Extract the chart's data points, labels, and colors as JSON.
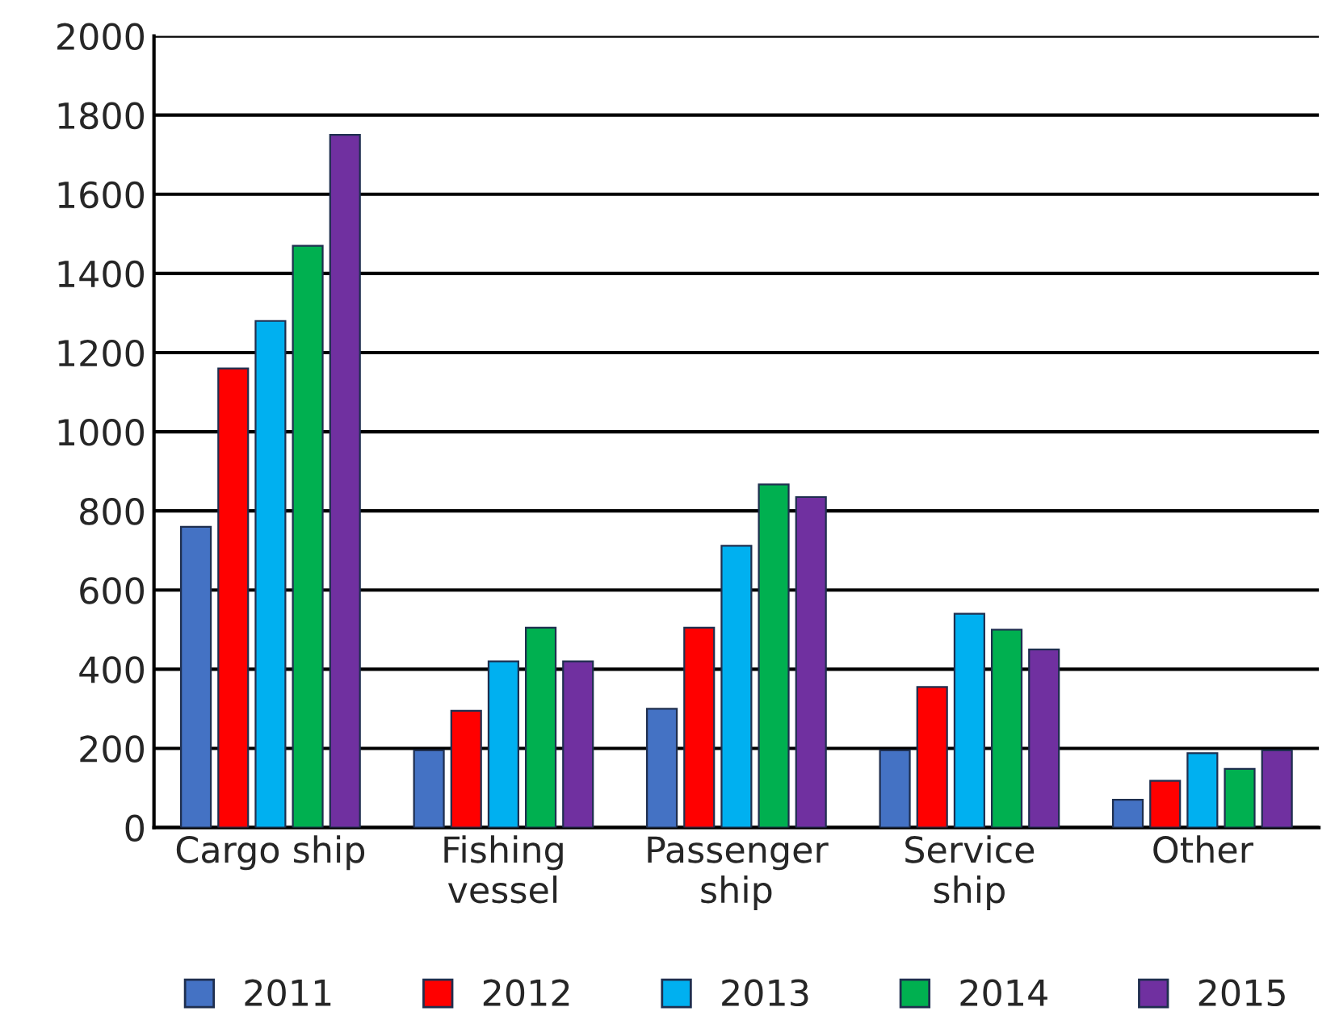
{
  "chart_data": {
    "type": "bar",
    "categories": [
      "Cargo ship",
      "Fishing\nvessel",
      "Passenger\nship",
      "Service\nship",
      "Other"
    ],
    "series": [
      {
        "name": "2011",
        "color": "#4472c4",
        "values": [
          760,
          195,
          300,
          195,
          70
        ]
      },
      {
        "name": "2012",
        "color": "#ff0000",
        "values": [
          1160,
          295,
          505,
          355,
          118
        ]
      },
      {
        "name": "2013",
        "color": "#00b0f0",
        "values": [
          1280,
          420,
          712,
          540,
          188
        ]
      },
      {
        "name": "2014",
        "color": "#00b050",
        "values": [
          1470,
          505,
          867,
          500,
          148
        ]
      },
      {
        "name": "2015",
        "color": "#7030a0",
        "values": [
          1750,
          420,
          835,
          450,
          195
        ]
      }
    ],
    "ylim": [
      0,
      2000
    ],
    "yticks": [
      0,
      200,
      400,
      600,
      800,
      1000,
      1200,
      1400,
      1600,
      1800,
      2000
    ],
    "grid": "y",
    "legend": "bottom"
  }
}
